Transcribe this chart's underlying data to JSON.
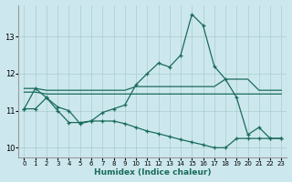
{
  "xlabel": "Humidex (Indice chaleur)",
  "background_color": "#cce8ee",
  "line_color": "#1a6b5a",
  "grid_color": "#aacccc",
  "xlim": [
    -0.5,
    23.5
  ],
  "ylim": [
    9.75,
    13.85
  ],
  "yticks": [
    10,
    11,
    12,
    13
  ],
  "xticks": [
    0,
    1,
    2,
    3,
    4,
    5,
    6,
    7,
    8,
    9,
    10,
    11,
    12,
    13,
    14,
    15,
    16,
    17,
    18,
    19,
    20,
    21,
    22,
    23
  ],
  "s1_x": [
    0,
    1,
    2,
    3,
    4,
    5,
    6,
    7,
    8,
    9,
    10,
    11,
    12,
    13,
    14,
    15,
    16,
    17,
    18,
    19,
    20,
    21,
    22,
    23
  ],
  "s1_y": [
    11.05,
    11.6,
    11.35,
    11.1,
    11.0,
    10.65,
    10.72,
    10.95,
    11.05,
    11.15,
    11.7,
    12.0,
    12.28,
    12.18,
    12.5,
    13.6,
    13.3,
    12.2,
    11.85,
    11.35,
    10.35,
    10.55,
    10.25,
    10.25
  ],
  "s2_x": [
    0,
    1,
    2,
    3,
    4,
    5,
    6,
    7,
    8,
    9,
    10,
    11,
    12,
    13,
    14,
    15,
    16,
    17,
    18,
    19,
    20,
    21,
    22,
    23
  ],
  "s2_y": [
    11.6,
    11.6,
    11.55,
    11.55,
    11.55,
    11.55,
    11.55,
    11.55,
    11.55,
    11.55,
    11.65,
    11.65,
    11.65,
    11.65,
    11.65,
    11.65,
    11.65,
    11.65,
    11.85,
    11.85,
    11.85,
    11.55,
    11.55,
    11.55
  ],
  "s3_x": [
    0,
    1,
    2,
    3,
    4,
    5,
    6,
    7,
    8,
    9,
    10,
    11,
    12,
    13,
    14,
    15,
    16,
    17,
    18,
    19,
    20,
    21,
    22,
    23
  ],
  "s3_y": [
    11.5,
    11.5,
    11.45,
    11.45,
    11.45,
    11.45,
    11.45,
    11.45,
    11.45,
    11.45,
    11.45,
    11.45,
    11.45,
    11.45,
    11.45,
    11.45,
    11.45,
    11.45,
    11.45,
    11.45,
    11.45,
    11.45,
    11.45,
    11.45
  ],
  "s4_x": [
    0,
    1,
    2,
    3,
    4,
    5,
    6,
    7,
    8,
    9,
    10,
    11,
    12,
    13,
    14,
    15,
    16,
    17,
    18,
    19,
    20,
    21,
    22,
    23
  ],
  "s4_y": [
    11.05,
    11.05,
    11.35,
    11.0,
    10.68,
    10.68,
    10.72,
    10.72,
    10.72,
    10.65,
    10.55,
    10.45,
    10.38,
    10.3,
    10.22,
    10.15,
    10.08,
    10.0,
    10.0,
    10.25,
    10.25,
    10.25,
    10.25,
    10.25
  ]
}
